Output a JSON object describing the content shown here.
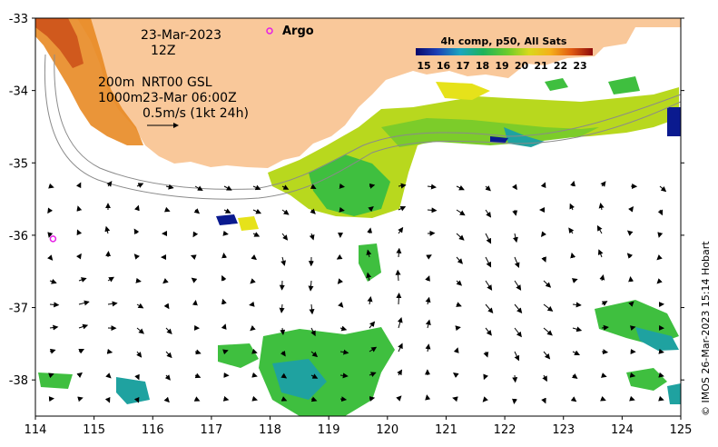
{
  "map": {
    "lon_ticks": [
      "114",
      "115",
      "116",
      "117",
      "118",
      "119",
      "120",
      "121",
      "122",
      "123",
      "124",
      "125"
    ],
    "lat_ticks": [
      "-33",
      "-34",
      "-35",
      "-36",
      "-37",
      "-38"
    ],
    "lon_range": [
      114,
      125
    ],
    "lat_range": [
      -38.5,
      -33
    ]
  },
  "annotations": {
    "date": "23-Mar-2023",
    "hour": "12Z",
    "contour_200": "200m",
    "product": "NRT00 GSL",
    "contour_1000": "1000m",
    "product_time": "23-Mar 06:00Z",
    "scale_vector": "0.5m/s (1kt 24h)"
  },
  "argo": {
    "label": "Argo",
    "marker_color": "#e61ee6",
    "floats": [
      {
        "lon": 114.3,
        "lat": -36.05
      }
    ]
  },
  "colorbar": {
    "title": "4h comp, p50, All Sats",
    "ticks": [
      "15",
      "16",
      "17",
      "18",
      "19",
      "20",
      "21",
      "22",
      "23"
    ]
  },
  "credit": "© IMOS 26-Mar-2023 15:14 Hobart",
  "colors": {
    "land": "#f9c89a",
    "sst_cool": "#1fa2a0",
    "sst_mid": "#3fbf3f",
    "sst_warm": "#c6d51a",
    "sst_hot": "#f7a21a",
    "sst_cold": "#0a1a8f"
  }
}
